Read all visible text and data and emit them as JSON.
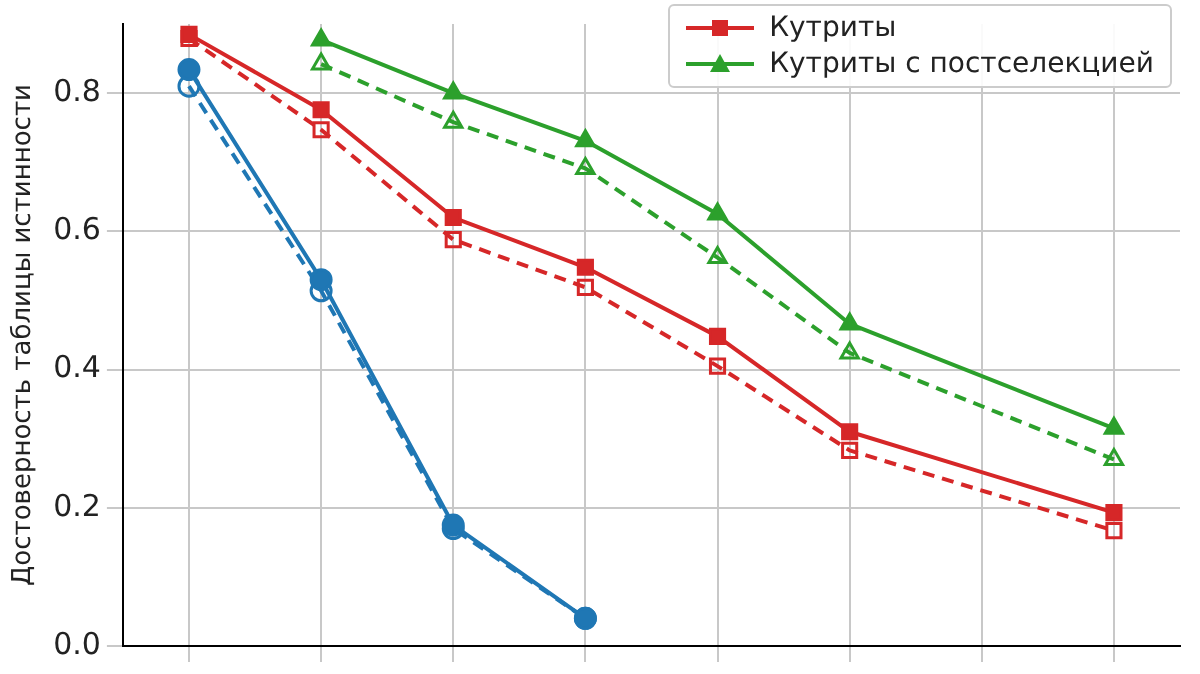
{
  "chart_data": {
    "type": "line",
    "ylabel": "Достоверность таблицы истинности",
    "categories": [
      null,
      null,
      null,
      null,
      null,
      null,
      null,
      null
    ],
    "ylim": [
      0,
      0.9
    ],
    "yticks": [
      {
        "value": 0,
        "label": "0.0"
      },
      0.2,
      0.4,
      0.6,
      0.8
    ],
    "tick_labels": "y",
    "grid": true,
    "legend": "top right",
    "series": [
      {
        "name": "Кутриты",
        "color": "#d62728",
        "marker": "square",
        "line_style": "solid",
        "values": [
          0.885,
          0.776,
          0.62,
          0.548,
          0.448,
          0.31,
          null,
          0.193
        ]
      },
      {
        "color": "#d62728",
        "marker": "square",
        "line_style": "dashed",
        "values": [
          0.879,
          0.747,
          0.588,
          0.519,
          0.405,
          0.283,
          null,
          0.167
        ]
      },
      {
        "name": "Кутриты с постселекцией",
        "color": "#2ca02c",
        "marker": "triangle",
        "line_style": "solid",
        "values": [
          null,
          0.877,
          0.8,
          0.731,
          0.625,
          0.466,
          null,
          0.315
        ]
      },
      {
        "color": "#2ca02c",
        "marker": "triangle",
        "line_style": "dashed",
        "values": [
          null,
          0.842,
          0.758,
          0.691,
          0.562,
          0.424,
          null,
          0.27
        ]
      },
      {
        "color": "#1f77b4",
        "marker": "circle",
        "line_style": "solid",
        "values": [
          0.834,
          0.53,
          0.175,
          0.04,
          null,
          null,
          null,
          null
        ]
      },
      {
        "color": "#1f77b4",
        "marker": "circle",
        "line_style": "dashed",
        "values": [
          0.81,
          0.514,
          0.17,
          0.04,
          null,
          null,
          null,
          null
        ]
      }
    ]
  }
}
